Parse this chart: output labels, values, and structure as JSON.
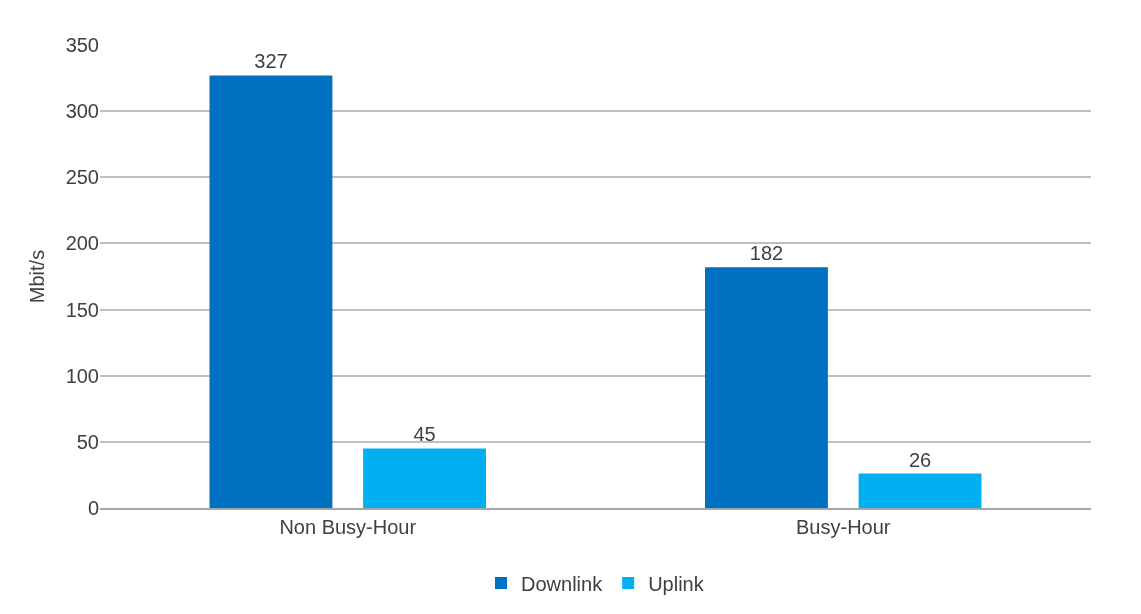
{
  "chart_data": {
    "type": "bar",
    "ylabel": "Mbit/s",
    "categories": [
      "Non Busy-Hour",
      "Busy-Hour"
    ],
    "series": [
      {
        "name": "Downlink",
        "color": "#0070c0",
        "values": [
          327,
          182
        ]
      },
      {
        "name": "Uplink",
        "color": "#00b0f0",
        "values": [
          45,
          26
        ]
      }
    ],
    "ylim": [
      0,
      350
    ],
    "yticks": [
      0,
      50,
      100,
      150,
      200,
      250,
      300,
      350
    ],
    "grid": "y",
    "legend": "bottom",
    "data_labels": true
  }
}
